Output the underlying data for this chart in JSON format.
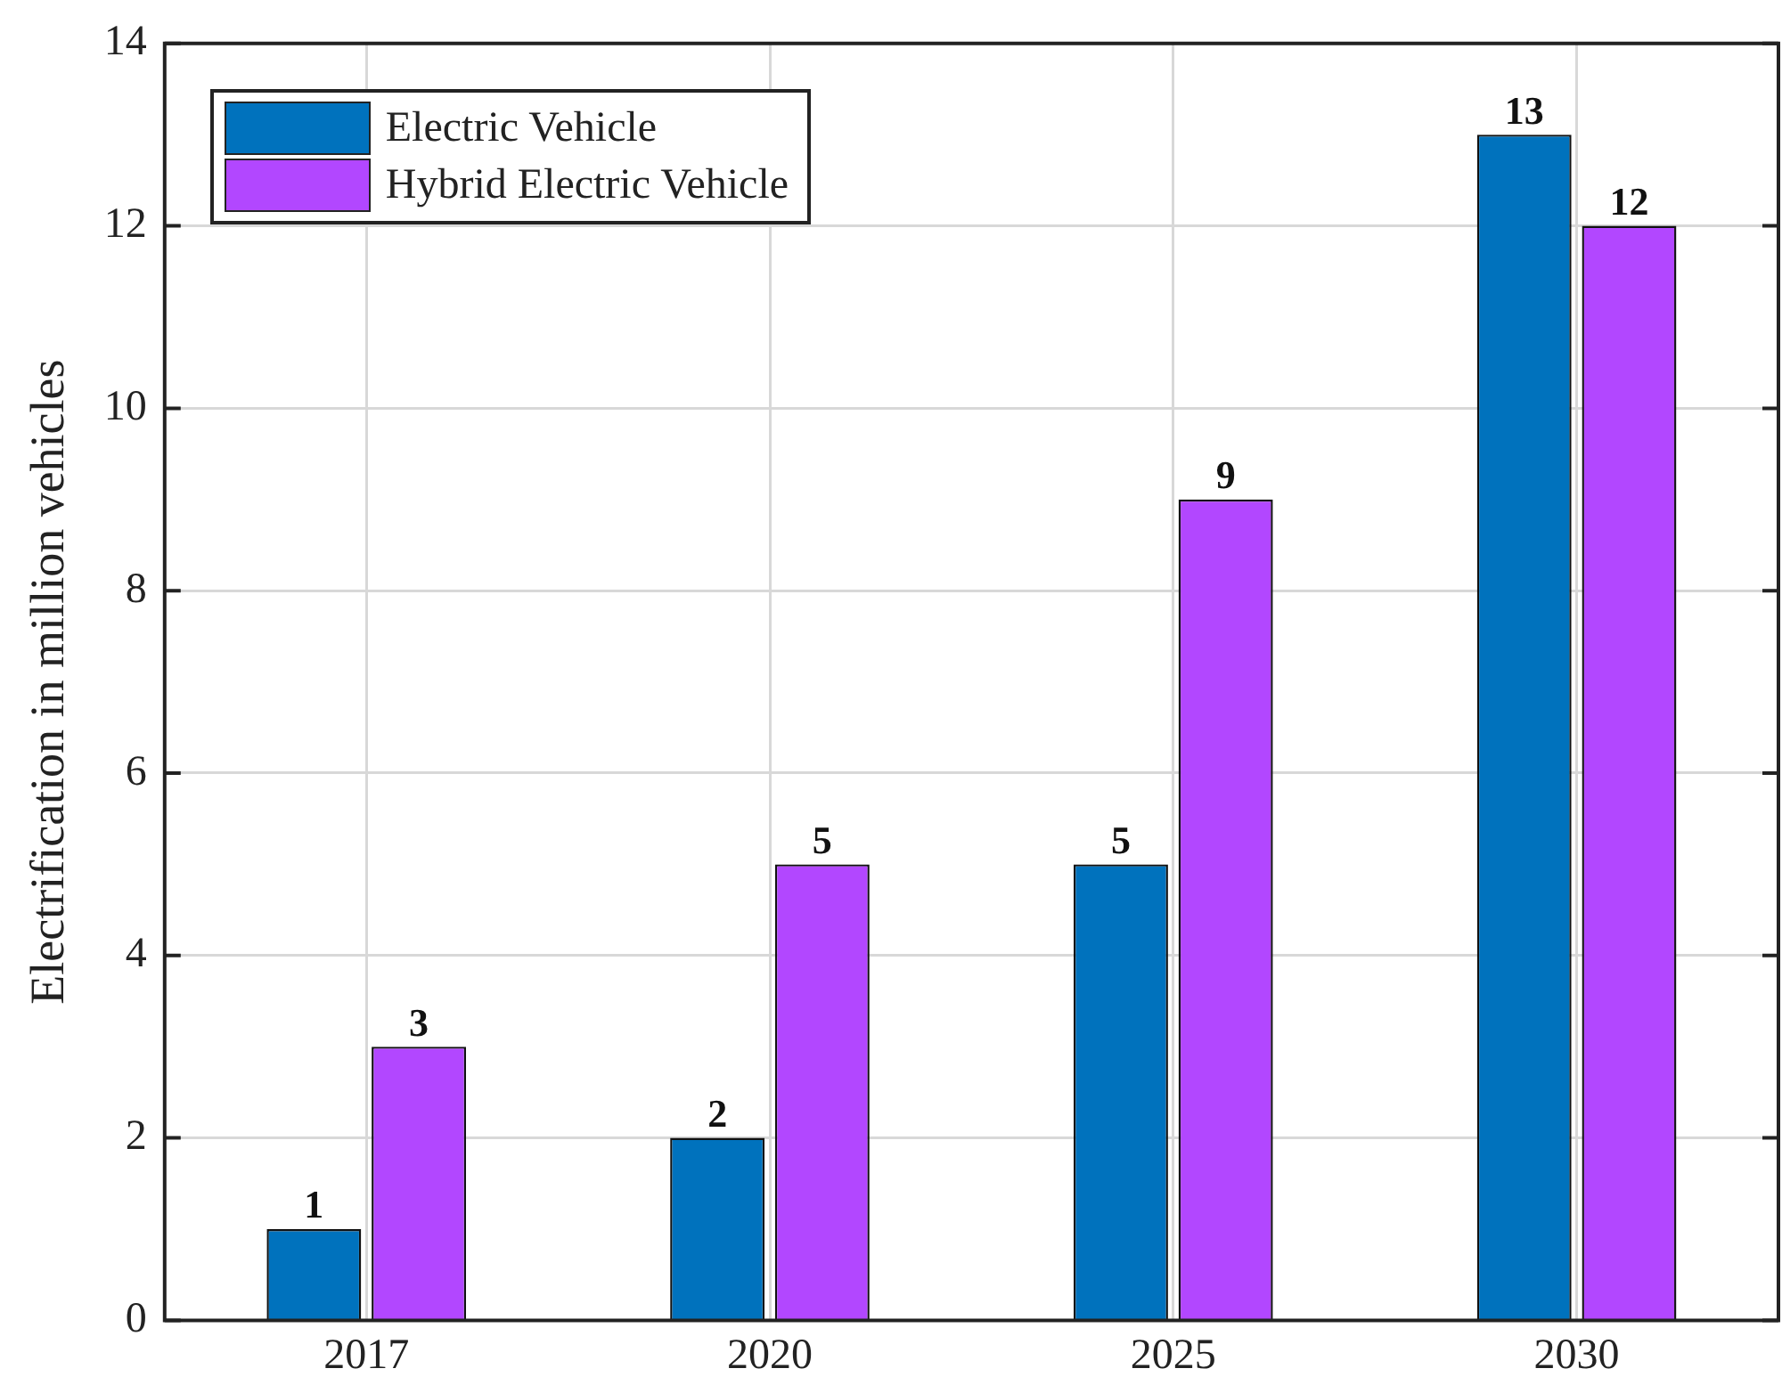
{
  "chart_data": {
    "type": "bar",
    "ylabel": "Electrification in million vehicles",
    "categories": [
      "2017",
      "2020",
      "2025",
      "2030"
    ],
    "series": [
      {
        "name": "Electric Vehicle",
        "color": "#0072bd",
        "values": [
          1,
          2,
          5,
          13
        ]
      },
      {
        "name": "Hybrid Electric Vehicle",
        "color": "#b247ff",
        "values": [
          3,
          5,
          9,
          12
        ]
      }
    ],
    "ylim": [
      0,
      14
    ],
    "yticks": [
      0,
      2,
      4,
      6,
      8,
      10,
      12,
      14
    ],
    "grid": true,
    "legend": "top left",
    "data_labels": true
  }
}
